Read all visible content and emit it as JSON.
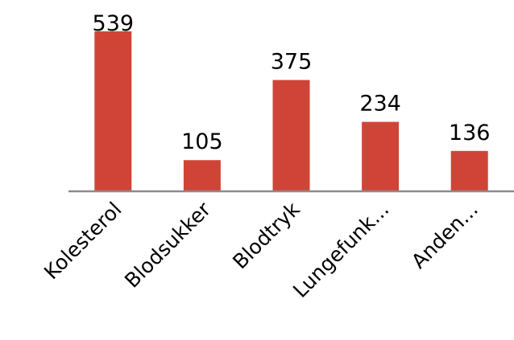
{
  "chart_data": {
    "type": "bar",
    "categories": [
      "Kolesterol",
      "Blodsukker",
      "Blodtryk",
      "Lungefunk...",
      "Anden..."
    ],
    "values": [
      539,
      105,
      375,
      234,
      136
    ],
    "color": "#d04437"
  }
}
